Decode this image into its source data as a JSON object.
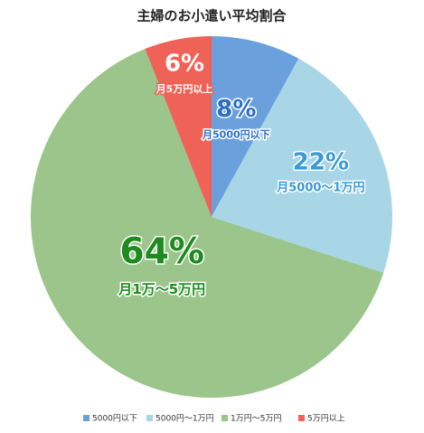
{
  "chart_data": {
    "type": "pie",
    "title": "主婦のお小遣い平均割合",
    "categories": [
      "5000円以下",
      "5000円〜1万円",
      "1万円〜5万円",
      "5万円以上"
    ],
    "slice_labels": [
      "月5000円以下",
      "月5000〜1万円",
      "月1万〜5万円",
      "月5万円以上"
    ],
    "values": [
      8,
      22,
      64,
      6
    ],
    "value_labels": [
      "8%",
      "22%",
      "64%",
      "6%"
    ],
    "colors": [
      "#6aa0dc",
      "#a8d6e6",
      "#9bc58b",
      "#ef6257"
    ],
    "label_colors": [
      "#2a6fc4",
      "#3a9ad8",
      "#1f8a1f",
      "#ffffff"
    ],
    "legend": "bottom"
  }
}
